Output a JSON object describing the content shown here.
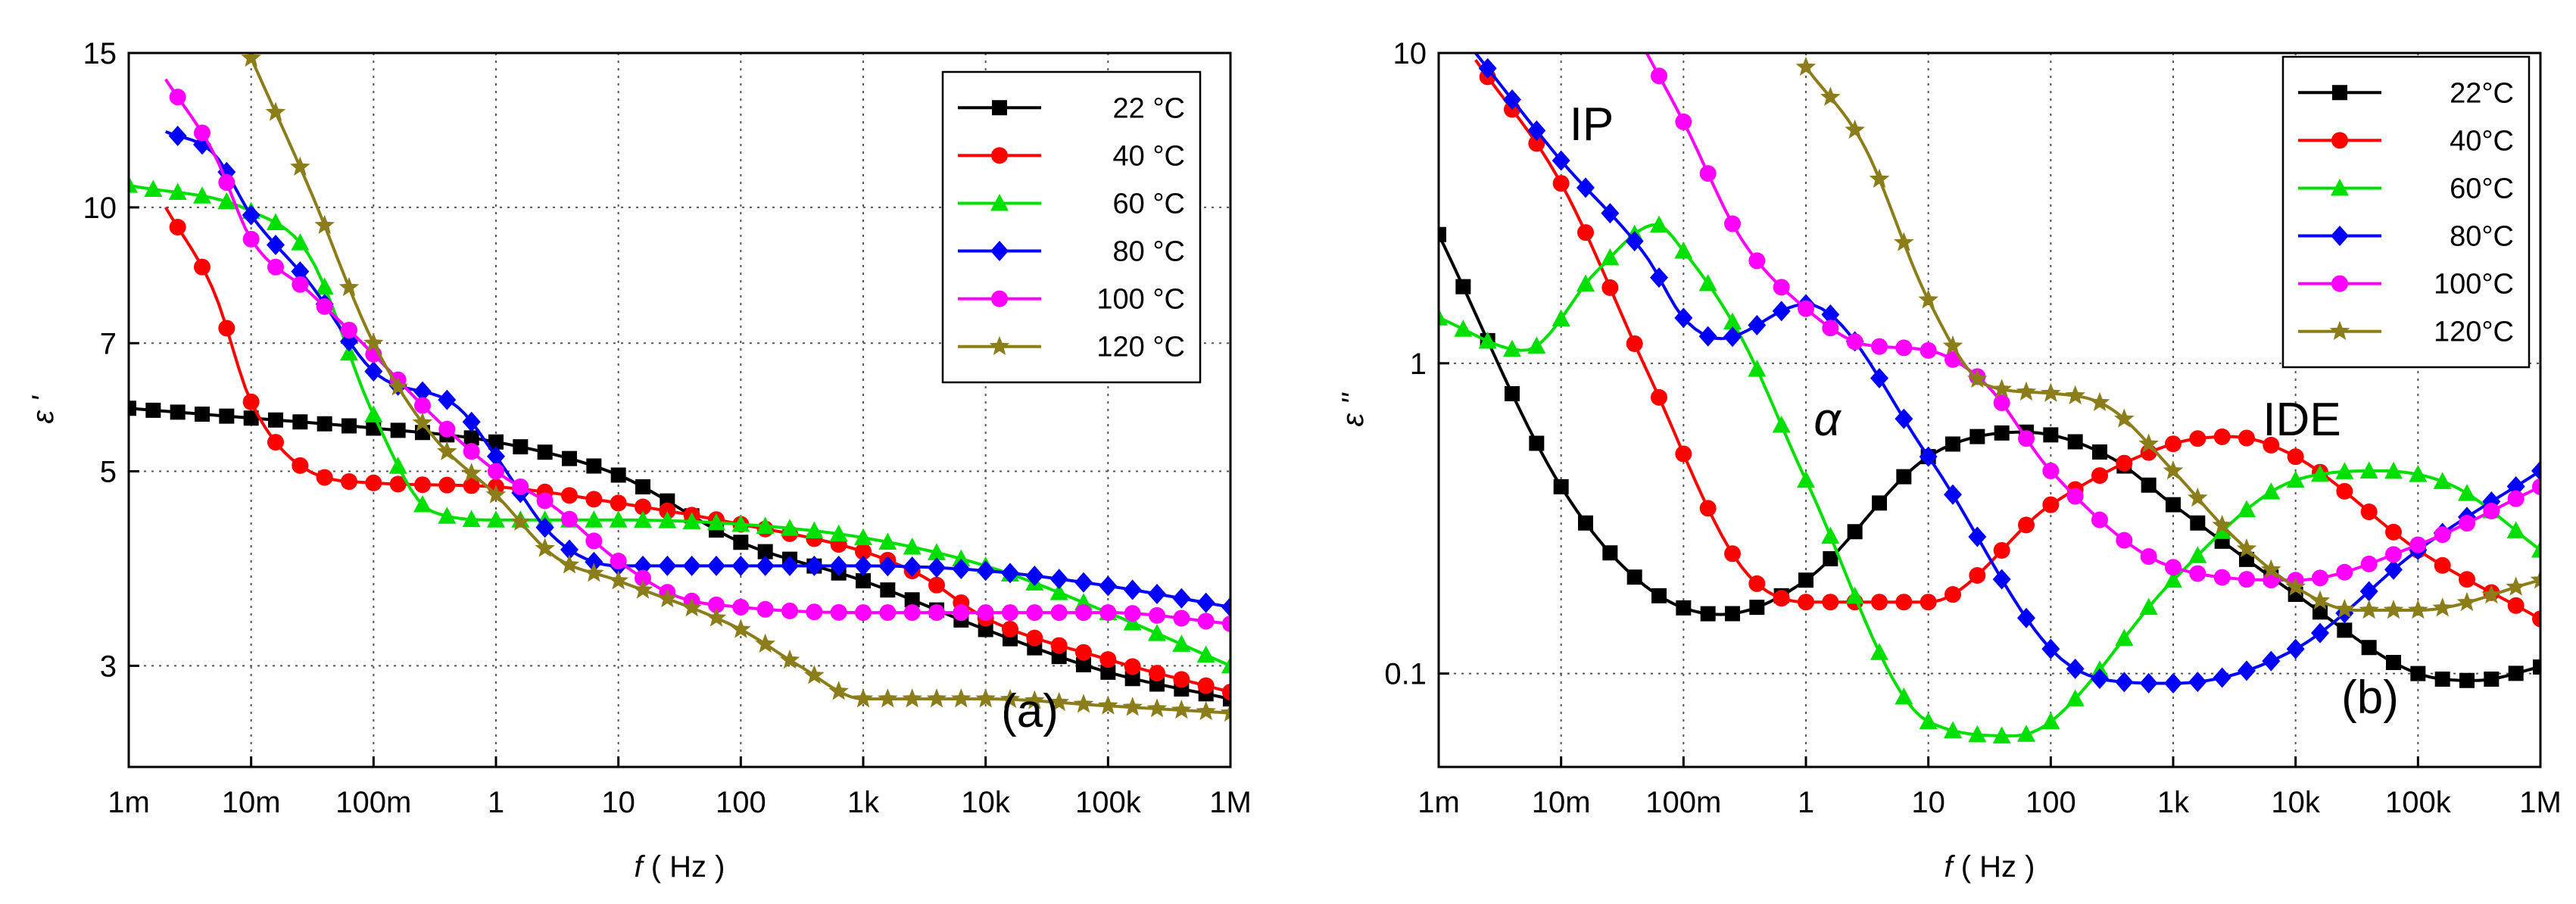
{
  "chart_data": [
    {
      "panel_label": "(a)",
      "type": "line",
      "x_scale": "log",
      "y_scale": "log",
      "xlim": [
        0.001,
        1000000
      ],
      "ylim": [
        2.3,
        15
      ],
      "x_ticks": [
        0.001,
        0.01,
        0.1,
        1,
        10,
        100,
        1000,
        10000,
        100000,
        1000000
      ],
      "x_tick_labels": [
        "1m",
        "10m",
        "100m",
        "1",
        "10",
        "100",
        "1k",
        "10k",
        "100k",
        "1M"
      ],
      "y_ticks": [
        3,
        5,
        7,
        10,
        15
      ],
      "y_tick_labels": [
        "3",
        "5",
        "7",
        "10",
        "15"
      ],
      "xlabel_italic": "f",
      "xlabel_rest": " ( Hz )",
      "ylabel": "ε '",
      "grid": true,
      "legend_position": "top-right",
      "series": [
        {
          "name": "22 °C",
          "color": "#000000",
          "marker": "square",
          "x": [
            0.001,
            0.01,
            0.1,
            1,
            10,
            100,
            1000,
            10000,
            100000,
            1000000
          ],
          "y": [
            5.9,
            5.75,
            5.6,
            5.4,
            4.95,
            4.15,
            3.75,
            3.3,
            2.95,
            2.75
          ]
        },
        {
          "name": "40 °C",
          "color": "#ff0000",
          "marker": "circle",
          "x": [
            0.002,
            0.005,
            0.01,
            0.03,
            0.1,
            1,
            10,
            100,
            1000,
            3000,
            10000,
            100000,
            1000000
          ],
          "y": [
            10.0,
            8.0,
            6.0,
            5.0,
            4.85,
            4.8,
            4.6,
            4.35,
            4.05,
            3.8,
            3.4,
            3.05,
            2.8
          ]
        },
        {
          "name": "60 °C",
          "color": "#00e000",
          "marker": "triangle",
          "x": [
            0.001,
            0.01,
            0.03,
            0.1,
            0.3,
            1,
            10,
            100,
            1000,
            10000,
            100000,
            1000000
          ],
          "y": [
            10.6,
            9.9,
            8.8,
            5.8,
            4.5,
            4.4,
            4.4,
            4.35,
            4.2,
            3.9,
            3.45,
            3.0
          ]
        },
        {
          "name": "80 °C",
          "color": "#0000ff",
          "marker": "diamond",
          "x": [
            0.002,
            0.005,
            0.01,
            0.03,
            0.1,
            0.5,
            1,
            3,
            10,
            100,
            1000,
            10000,
            100000,
            1000000
          ],
          "y": [
            12.2,
            11.5,
            9.8,
            8.2,
            6.5,
            5.9,
            5.2,
            4.2,
            3.9,
            3.9,
            3.9,
            3.85,
            3.7,
            3.5
          ]
        },
        {
          "name": "100 °C",
          "color": "#ff00ff",
          "marker": "circle",
          "x": [
            0.002,
            0.005,
            0.01,
            0.03,
            0.1,
            0.3,
            1,
            3,
            10,
            30,
            100,
            1000,
            10000,
            100000,
            1000000
          ],
          "y": [
            14.0,
            11.5,
            9.2,
            8.0,
            6.8,
            5.8,
            5.0,
            4.55,
            3.95,
            3.6,
            3.5,
            3.45,
            3.45,
            3.45,
            3.35
          ]
        },
        {
          "name": "120 °C",
          "color": "#8b7d1a",
          "marker": "star",
          "x": [
            0.01,
            0.03,
            0.1,
            0.3,
            1,
            3,
            10,
            100,
            300,
            1000,
            10000,
            100000,
            1000000
          ],
          "y": [
            14.8,
            10.5,
            7.0,
            5.5,
            4.7,
            4.0,
            3.75,
            3.3,
            3.0,
            2.75,
            2.75,
            2.7,
            2.65
          ]
        }
      ]
    },
    {
      "panel_label": "(b)",
      "type": "line",
      "x_scale": "log",
      "y_scale": "log",
      "xlim": [
        0.001,
        1000000
      ],
      "ylim": [
        0.05,
        10
      ],
      "x_ticks": [
        0.001,
        0.01,
        0.1,
        1,
        10,
        100,
        1000,
        10000,
        100000,
        1000000
      ],
      "x_tick_labels": [
        "1m",
        "10m",
        "100m",
        "1",
        "10",
        "100",
        "1k",
        "10k",
        "100k",
        "1M"
      ],
      "y_ticks": [
        0.1,
        1,
        10
      ],
      "y_tick_labels": [
        "0.1",
        "1",
        "10"
      ],
      "xlabel_italic": "f",
      "xlabel_rest": " ( Hz )",
      "ylabel": "ε ''",
      "grid": true,
      "legend_position": "top-right",
      "annotations": [
        "IP",
        "α",
        "IDE"
      ],
      "series": [
        {
          "name": "22°C",
          "color": "#000000",
          "marker": "square",
          "x": [
            0.001,
            0.01,
            0.05,
            0.2,
            1,
            10,
            60,
            300,
            1000,
            10000,
            100000,
            300000,
            1000000
          ],
          "y": [
            2.6,
            0.4,
            0.19,
            0.155,
            0.2,
            0.5,
            0.6,
            0.5,
            0.35,
            0.18,
            0.1,
            0.095,
            0.105
          ]
        },
        {
          "name": "40°C",
          "color": "#ff0000",
          "marker": "circle",
          "x": [
            0.002,
            0.01,
            0.05,
            0.3,
            1,
            10,
            100,
            1000,
            3000,
            10000,
            100000,
            1000000
          ],
          "y": [
            9.5,
            3.8,
            0.95,
            0.22,
            0.17,
            0.17,
            0.35,
            0.55,
            0.58,
            0.5,
            0.25,
            0.15
          ]
        },
        {
          "name": "60°C",
          "color": "#00e000",
          "marker": "triangle",
          "x": [
            0.001,
            0.005,
            0.02,
            0.06,
            0.1,
            0.3,
            1,
            10,
            50,
            100,
            1000,
            10000,
            50000,
            200000,
            1000000
          ],
          "y": [
            1.4,
            1.1,
            2.0,
            2.8,
            2.3,
            1.2,
            0.42,
            0.07,
            0.063,
            0.07,
            0.2,
            0.42,
            0.45,
            0.4,
            0.25
          ]
        },
        {
          "name": "80°C",
          "color": "#0000ff",
          "marker": "diamond",
          "x": [
            0.002,
            0.01,
            0.05,
            0.1,
            0.2,
            1,
            10,
            100,
            300,
            1000,
            10000,
            100000,
            1000000
          ],
          "y": [
            10.0,
            4.5,
            2.2,
            1.4,
            1.2,
            1.55,
            0.5,
            0.12,
            0.095,
            0.093,
            0.12,
            0.25,
            0.45
          ]
        },
        {
          "name": "100°C",
          "color": "#ff00ff",
          "marker": "circle",
          "x": [
            0.05,
            0.1,
            0.3,
            1,
            3,
            10,
            30,
            100,
            1000,
            10000,
            100000,
            1000000
          ],
          "y": [
            10.0,
            6.0,
            2.5,
            1.5,
            1.15,
            1.1,
            0.85,
            0.45,
            0.22,
            0.2,
            0.26,
            0.4
          ]
        },
        {
          "name": "120°C",
          "color": "#8b7d1a",
          "marker": "star",
          "x": [
            1,
            3,
            10,
            30,
            100,
            300,
            1000,
            3000,
            10000,
            30000,
            100000,
            1000000
          ],
          "y": [
            9.0,
            5.0,
            1.6,
            0.85,
            0.8,
            0.72,
            0.45,
            0.28,
            0.19,
            0.16,
            0.16,
            0.2
          ]
        }
      ]
    }
  ]
}
